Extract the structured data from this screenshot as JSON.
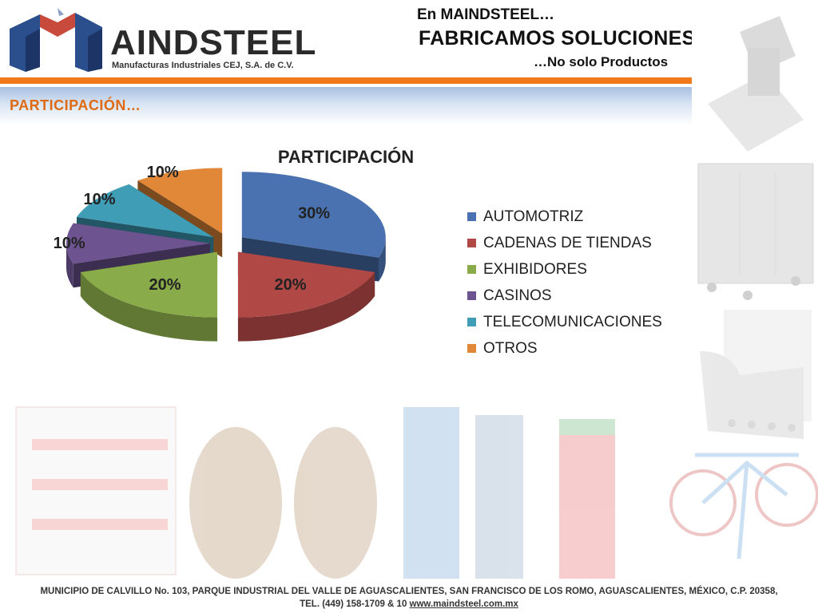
{
  "header": {
    "logo_name": "AINDSTEEL",
    "logo_subtitle": "Manufacturas Industriales CEJ, S.A. de C.V.",
    "slogan_line1": "En MAINDSTEEL…",
    "slogan_line2": "FABRICAMOS SOLUCIONES",
    "slogan_line3": "…No solo Productos"
  },
  "section": {
    "title": "PARTICIPACIÓN…"
  },
  "footer": {
    "line1": "MUNICIPIO DE CALVILLO No. 103, PARQUE INDUSTRIAL DEL VALLE DE AGUASCALIENTES, SAN FRANCISCO DE LOS ROMO, AGUASCALIENTES, MÉXICO, C.P. 20358,",
    "line2_prefix": "TEL. (449) 158-1709 & 10 ",
    "link": "www.maindsteel.com.mx"
  },
  "colors": {
    "accent_orange": "#f07a1a",
    "section_title": "#e06a12",
    "slice_colors": [
      "#4a72b0",
      "#b04846",
      "#8aab4a",
      "#6d5491",
      "#3f9db6",
      "#e08838"
    ]
  },
  "chart_data": {
    "type": "pie",
    "title": "PARTICIPACIÓN",
    "categories": [
      "AUTOMOTRIZ",
      "CADENAS DE TIENDAS",
      "EXHIBIDORES",
      "CASINOS",
      "TELECOMUNICACIONES",
      "OTROS"
    ],
    "values": [
      30,
      20,
      20,
      10,
      10,
      10
    ],
    "data_labels": [
      "30%",
      "20%",
      "20%",
      "10%",
      "10%",
      "10%"
    ],
    "exploded": true,
    "style": "3d",
    "legend_position": "right"
  }
}
